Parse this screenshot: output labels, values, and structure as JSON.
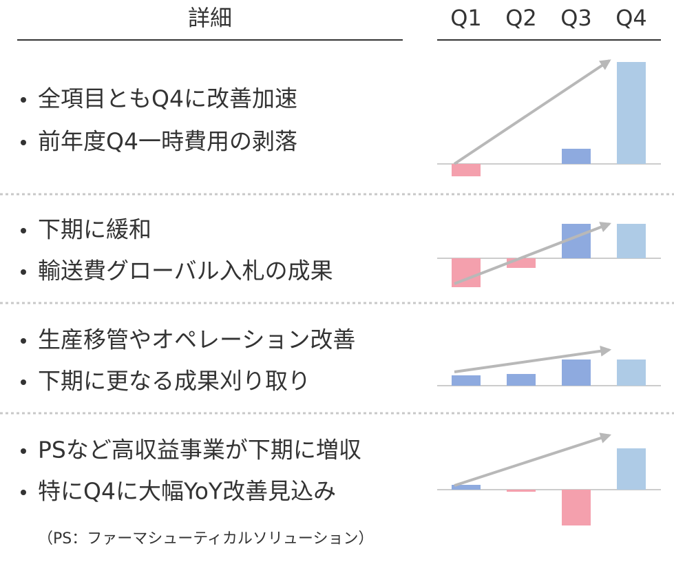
{
  "header": {
    "title": "詳細",
    "quarters": [
      "Q1",
      "Q2",
      "Q3",
      "Q4"
    ]
  },
  "colors": {
    "negative": "#f4a0ad",
    "positive": "#8eaadf",
    "latest": "#aecbe6"
  },
  "sections": [
    {
      "bullets": [
        "全項目ともQ4に改善加速",
        "前年度Q4一時費用の剥落"
      ],
      "values": [
        -18,
        0,
        22,
        148
      ]
    },
    {
      "bullets": [
        "下期に緩和",
        "輸送費グローバル入札の成果"
      ],
      "values": [
        -42,
        -14,
        50,
        50
      ]
    },
    {
      "bullets": [
        "生産移管やオペレーション改善",
        "下期に更なる成果刈り取り"
      ],
      "values": [
        15,
        17,
        38,
        38
      ]
    },
    {
      "bullets": [
        "PSなど高収益事業が下期に増収",
        "特にQ4に大幅YoY改善見込み"
      ],
      "values": [
        7,
        -3,
        -52,
        60
      ]
    }
  ],
  "footnote": "（PS：ファーマシューティカルソリューション）"
}
